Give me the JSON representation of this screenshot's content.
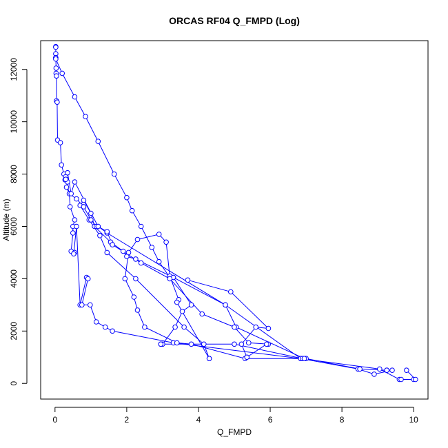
{
  "chart_data": {
    "type": "line",
    "title": "ORCAS RF04 Q_FMPD (Log)",
    "xlabel": "Q_FMPD",
    "ylabel": "Altitude (m)",
    "xlim": [
      -0.4,
      10.4
    ],
    "ylim": [
      -600,
      13100
    ],
    "xticks": [
      0,
      2,
      4,
      6,
      8,
      10
    ],
    "yticks": [
      0,
      2000,
      4000,
      6000,
      8000,
      10000,
      12000
    ],
    "grid": false,
    "legend": "none",
    "series_color": "#0000FF",
    "marker": "open-circle",
    "series": [
      {
        "x": [
          0.02,
          0.02,
          0.02,
          0.02,
          0.03,
          0.03,
          0.04,
          0.04,
          0.06,
          0.07,
          0.15,
          0.18,
          0.25,
          0.3,
          0.28,
          0.35,
          0.32,
          0.4,
          0.42,
          0.55,
          0.5,
          0.5,
          0.45,
          0.55,
          0.52,
          0.6,
          0.7,
          0.88,
          0.92,
          0.75,
          0.98,
          1.15,
          1.4,
          1.6,
          3.3,
          6.85,
          9.05,
          9.6,
          9.65,
          10.0,
          10.05,
          9.8
        ],
        "y": [
          12870,
          12850,
          12600,
          12450,
          12050,
          11850,
          11750,
          10800,
          10750,
          9300,
          9200,
          8350,
          8000,
          7900,
          7780,
          7700,
          7500,
          7250,
          6750,
          6250,
          6000,
          5750,
          5050,
          5000,
          4950,
          6000,
          3000,
          4050,
          4000,
          3000,
          3000,
          2350,
          2150,
          2000,
          1550,
          950,
          550,
          150,
          150,
          150,
          150,
          500
        ]
      },
      {
        "x": [
          0.02,
          0.02,
          0.2,
          0.55,
          0.85,
          1.2,
          1.65,
          2.0,
          2.15,
          2.4,
          2.7,
          2.9,
          3.2,
          3.3,
          4.75,
          6.85,
          8.45,
          8.9,
          9.4,
          9.25
        ],
        "y": [
          12450,
          12400,
          11850,
          10950,
          10200,
          9250,
          8000,
          7100,
          6600,
          6000,
          5200,
          4650,
          4050,
          4050,
          3000,
          950,
          550,
          350,
          500,
          500
        ]
      },
      {
        "x": [
          9.25,
          8.5,
          7.0,
          5.3,
          3.8,
          3.4,
          2.5,
          2.3,
          2.2,
          1.95,
          2.05,
          2.3,
          2.9,
          3.1,
          3.2,
          3.45,
          3.4,
          4.3
        ],
        "y": [
          500,
          550,
          950,
          950,
          1500,
          1550,
          2150,
          2800,
          3300,
          4000,
          5000,
          5500,
          5700,
          5400,
          4100,
          3200,
          3100,
          950
        ]
      },
      {
        "x": [
          4.3,
          4.15,
          3.6,
          2.25,
          1.45,
          1.25,
          0.95,
          0.7,
          0.8,
          1.0,
          1.1,
          1.55,
          1.9,
          2.0,
          2.25,
          3.3,
          3.8,
          3.55,
          3.35,
          3.0,
          2.95
        ],
        "y": [
          950,
          1500,
          2150,
          4000,
          5000,
          5650,
          6250,
          6800,
          7000,
          6500,
          6000,
          5400,
          5050,
          4850,
          4750,
          4050,
          3000,
          2750,
          2150,
          1500,
          1500
        ]
      },
      {
        "x": [
          2.95,
          5.0,
          6.9,
          6.95,
          5.05,
          4.75,
          1.45,
          1.2,
          1.15,
          1.0,
          0.8
        ],
        "y": [
          1500,
          1500,
          950,
          950,
          2150,
          3000,
          5750,
          6000,
          6000,
          6250,
          6750
        ]
      },
      {
        "x": [
          0.8,
          0.6,
          0.4,
          0.3,
          0.35,
          0.45,
          0.55,
          1.2,
          1.45,
          1.6,
          2.4,
          3.2,
          4.1,
          5.0,
          5.4,
          5.95,
          5.9,
          5.35,
          5.2,
          5.6,
          5.95,
          4.9,
          3.7
        ],
        "y": [
          6750,
          7050,
          7250,
          7800,
          8050,
          7250,
          7700,
          6000,
          5800,
          5300,
          4600,
          4000,
          2650,
          2150,
          1550,
          1500,
          1500,
          1000,
          1500,
          2150,
          2100,
          3500,
          3950
        ]
      }
    ]
  }
}
